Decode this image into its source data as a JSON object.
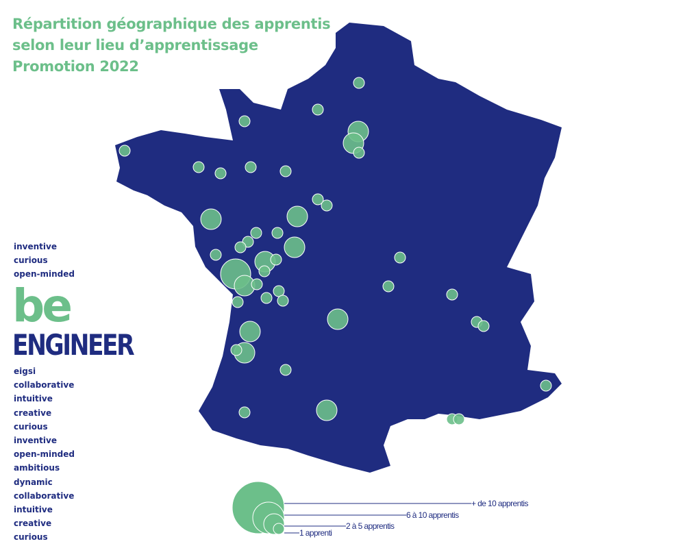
{
  "title": {
    "line1": "Répartition géographique des apprentis",
    "line2": "selon leur lieu d’apprentissage",
    "line3": "Promotion 2022"
  },
  "brand": {
    "be": "be",
    "engineer": "ENGINEER"
  },
  "words_top": [
    "inventive",
    "curious",
    "open-minded"
  ],
  "words_bottom": [
    "eigsi",
    "collaborative",
    "intuitive",
    "creative",
    "curious",
    "inventive",
    "open-minded",
    "ambitious",
    "dynamic",
    "collaborative",
    "intuitive",
    "creative",
    "curious"
  ],
  "legend": {
    "items": [
      {
        "label": "+ de 10 apprentis"
      },
      {
        "label": "6 à 10 apprentis"
      },
      {
        "label": "2 à 5 apprentis"
      },
      {
        "label": "1 apprenti"
      }
    ]
  },
  "colors": {
    "map_fill": "#1f2c80",
    "bubble_fill": "#6cbf8a",
    "title": "#6cbf8a",
    "text": "#1f2c80"
  },
  "map": {
    "region": "France"
  }
}
